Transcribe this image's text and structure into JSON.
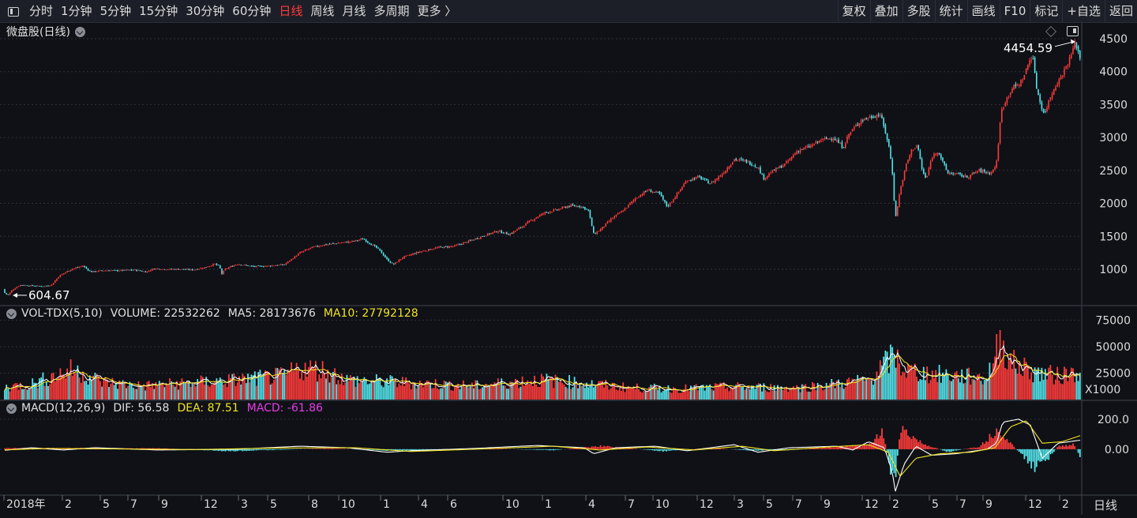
{
  "toolbar": {
    "left_items": [
      "分时",
      "1分钟",
      "5分钟",
      "15分钟",
      "30分钟",
      "60分钟",
      "日线",
      "周线",
      "月线",
      "多周期",
      "更多 〉"
    ],
    "active": "日线",
    "right_items": [
      "复权",
      "叠加",
      "多股",
      "统计",
      "画线",
      "F10",
      "标记",
      "+自选",
      "返回"
    ]
  },
  "main_panel": {
    "title": "微盘股(日线)",
    "high_label": "4454.59",
    "low_label": "604.67"
  },
  "vol_panel": {
    "name": "VOL-TDX(5,10)",
    "volume": "VOLUME: 22532262",
    "ma5": "MA5: 28173676",
    "ma10": "MA10: 27792128",
    "unit": "X1000"
  },
  "macd_panel": {
    "name": "MACD(12,26,9)",
    "dif": "DIF: 56.58",
    "dea": "DEA: 87.51",
    "macd": "MACD: -61.86"
  },
  "period_label": "日线",
  "colors": {
    "up": "#ff3b3b",
    "down": "#54e6ec",
    "ma5": "#ffffff",
    "ma10": "#f2e322",
    "macd": "#e83ce8",
    "background": "#0f1116"
  },
  "chart_data": [
    {
      "type": "candlestick",
      "title": "微盘股(日线)",
      "ylim": [
        580,
        4620
      ],
      "yticks": [
        1000,
        1500,
        2000,
        2500,
        3000,
        3500,
        4000,
        4500
      ],
      "x_ticks": [
        "2018年",
        "2",
        "5",
        "7",
        "9",
        "12",
        "3",
        "5",
        "8",
        "10",
        "1",
        "4",
        "6",
        "10",
        "1",
        "4",
        "7",
        "10",
        "12",
        "3",
        "5",
        "7",
        "9",
        "12",
        "2",
        "5",
        "7",
        "9",
        "12",
        "2"
      ],
      "close_path": [
        [
          0,
          700
        ],
        [
          5,
          650
        ],
        [
          10,
          605
        ],
        [
          15,
          680
        ],
        [
          25,
          760
        ],
        [
          40,
          750
        ],
        [
          55,
          740
        ],
        [
          65,
          760
        ],
        [
          75,
          900
        ],
        [
          90,
          1000
        ],
        [
          105,
          1050
        ],
        [
          115,
          960
        ],
        [
          130,
          980
        ],
        [
          150,
          980
        ],
        [
          170,
          990
        ],
        [
          185,
          960
        ],
        [
          195,
          1010
        ],
        [
          210,
          1000
        ],
        [
          230,
          1000
        ],
        [
          245,
          990
        ],
        [
          260,
          1030
        ],
        [
          272,
          1080
        ],
        [
          278,
          1040
        ],
        [
          281,
          930
        ],
        [
          285,
          1000
        ],
        [
          300,
          1080
        ],
        [
          320,
          1040
        ],
        [
          340,
          1050
        ],
        [
          360,
          1070
        ],
        [
          380,
          1250
        ],
        [
          395,
          1330
        ],
        [
          410,
          1370
        ],
        [
          430,
          1400
        ],
        [
          445,
          1420
        ],
        [
          460,
          1460
        ],
        [
          470,
          1380
        ],
        [
          480,
          1300
        ],
        [
          490,
          1150
        ],
        [
          498,
          1070
        ],
        [
          510,
          1180
        ],
        [
          530,
          1260
        ],
        [
          555,
          1330
        ],
        [
          575,
          1350
        ],
        [
          595,
          1430
        ],
        [
          615,
          1520
        ],
        [
          630,
          1580
        ],
        [
          645,
          1530
        ],
        [
          660,
          1640
        ],
        [
          675,
          1760
        ],
        [
          690,
          1860
        ],
        [
          705,
          1900
        ],
        [
          720,
          1960
        ],
        [
          735,
          1960
        ],
        [
          745,
          1900
        ],
        [
          752,
          1530
        ],
        [
          760,
          1600
        ],
        [
          775,
          1770
        ],
        [
          790,
          1900
        ],
        [
          805,
          2080
        ],
        [
          820,
          2200
        ],
        [
          835,
          2150
        ],
        [
          845,
          1950
        ],
        [
          855,
          2100
        ],
        [
          870,
          2350
        ],
        [
          885,
          2400
        ],
        [
          900,
          2300
        ],
        [
          915,
          2450
        ],
        [
          930,
          2670
        ],
        [
          945,
          2640
        ],
        [
          960,
          2550
        ],
        [
          967,
          2380
        ],
        [
          980,
          2500
        ],
        [
          995,
          2600
        ],
        [
          1010,
          2800
        ],
        [
          1025,
          2860
        ],
        [
          1040,
          2960
        ],
        [
          1055,
          3000
        ],
        [
          1068,
          2850
        ],
        [
          1075,
          3050
        ],
        [
          1090,
          3260
        ],
        [
          1105,
          3320
        ],
        [
          1115,
          3350
        ],
        [
          1122,
          3050
        ],
        [
          1126,
          2850
        ],
        [
          1130,
          2500
        ],
        [
          1134,
          1760
        ],
        [
          1140,
          2200
        ],
        [
          1148,
          2600
        ],
        [
          1155,
          2820
        ],
        [
          1162,
          2880
        ],
        [
          1168,
          2500
        ],
        [
          1173,
          2360
        ],
        [
          1180,
          2700
        ],
        [
          1188,
          2800
        ],
        [
          1195,
          2600
        ],
        [
          1200,
          2460
        ],
        [
          1210,
          2450
        ],
        [
          1225,
          2400
        ],
        [
          1240,
          2500
        ],
        [
          1255,
          2460
        ],
        [
          1262,
          2600
        ],
        [
          1268,
          3400
        ],
        [
          1275,
          3600
        ],
        [
          1282,
          3750
        ],
        [
          1290,
          3800
        ],
        [
          1296,
          3900
        ],
        [
          1303,
          4150
        ],
        [
          1308,
          4250
        ],
        [
          1312,
          3800
        ],
        [
          1318,
          3500
        ],
        [
          1323,
          3350
        ],
        [
          1328,
          3550
        ],
        [
          1335,
          3750
        ],
        [
          1345,
          3950
        ],
        [
          1355,
          4200
        ],
        [
          1362,
          4450
        ],
        [
          1368,
          4200
        ]
      ]
    },
    {
      "type": "bar",
      "title": "VOL-TDX(5,10)",
      "ylabel": "X1000",
      "ylim": [
        0,
        88000
      ],
      "yticks": [
        25000,
        50000,
        75000
      ],
      "volume_envelope": [
        [
          0,
          12000
        ],
        [
          40,
          16000
        ],
        [
          90,
          30000
        ],
        [
          105,
          27000
        ],
        [
          130,
          18000
        ],
        [
          180,
          14000
        ],
        [
          260,
          18000
        ],
        [
          300,
          20000
        ],
        [
          360,
          24000
        ],
        [
          380,
          32000
        ],
        [
          410,
          30000
        ],
        [
          440,
          20000
        ],
        [
          520,
          17000
        ],
        [
          600,
          14000
        ],
        [
          680,
          20000
        ],
        [
          720,
          18000
        ],
        [
          800,
          12000
        ],
        [
          860,
          11000
        ],
        [
          930,
          13000
        ],
        [
          1010,
          12000
        ],
        [
          1060,
          16000
        ],
        [
          1100,
          20000
        ],
        [
          1133,
          45000
        ],
        [
          1145,
          30000
        ],
        [
          1180,
          26000
        ],
        [
          1250,
          22000
        ],
        [
          1268,
          62000
        ],
        [
          1280,
          38000
        ],
        [
          1310,
          28000
        ],
        [
          1340,
          24000
        ],
        [
          1368,
          30000
        ]
      ],
      "series": [
        {
          "name": "MA5",
          "value": 28173676
        },
        {
          "name": "MA10",
          "value": 27792128
        }
      ]
    },
    {
      "type": "line",
      "title": "MACD(12,26,9)",
      "ylim": [
        -300,
        320
      ],
      "yticks": [
        200.0,
        0.0
      ],
      "dif_path": [
        [
          0,
          -10
        ],
        [
          40,
          10
        ],
        [
          80,
          -5
        ],
        [
          120,
          10
        ],
        [
          200,
          -5
        ],
        [
          300,
          0
        ],
        [
          380,
          20
        ],
        [
          440,
          10
        ],
        [
          490,
          -20
        ],
        [
          520,
          -10
        ],
        [
          600,
          5
        ],
        [
          680,
          25
        ],
        [
          740,
          10
        ],
        [
          752,
          -30
        ],
        [
          780,
          10
        ],
        [
          830,
          20
        ],
        [
          870,
          -10
        ],
        [
          930,
          30
        ],
        [
          960,
          -20
        ],
        [
          1000,
          10
        ],
        [
          1060,
          20
        ],
        [
          1080,
          -5
        ],
        [
          1100,
          50
        ],
        [
          1120,
          10
        ],
        [
          1130,
          -150
        ],
        [
          1134,
          -280
        ],
        [
          1145,
          -100
        ],
        [
          1160,
          20
        ],
        [
          1180,
          -40
        ],
        [
          1210,
          -30
        ],
        [
          1250,
          0
        ],
        [
          1262,
          40
        ],
        [
          1270,
          180
        ],
        [
          1290,
          200
        ],
        [
          1305,
          160
        ],
        [
          1320,
          -60
        ],
        [
          1340,
          40
        ],
        [
          1368,
          60
        ]
      ],
      "dea_path": [
        [
          0,
          -5
        ],
        [
          60,
          5
        ],
        [
          150,
          2
        ],
        [
          250,
          -2
        ],
        [
          350,
          8
        ],
        [
          450,
          10
        ],
        [
          520,
          -15
        ],
        [
          600,
          0
        ],
        [
          700,
          20
        ],
        [
          760,
          -5
        ],
        [
          820,
          15
        ],
        [
          880,
          -5
        ],
        [
          940,
          20
        ],
        [
          980,
          -10
        ],
        [
          1050,
          15
        ],
        [
          1100,
          30
        ],
        [
          1125,
          -20
        ],
        [
          1140,
          -180
        ],
        [
          1160,
          -60
        ],
        [
          1190,
          -30
        ],
        [
          1230,
          -20
        ],
        [
          1260,
          10
        ],
        [
          1280,
          150
        ],
        [
          1300,
          190
        ],
        [
          1320,
          40
        ],
        [
          1345,
          50
        ],
        [
          1368,
          90
        ]
      ],
      "histogram": [
        [
          20,
          8
        ],
        [
          100,
          10
        ],
        [
          210,
          6
        ],
        [
          290,
          -15
        ],
        [
          420,
          6
        ],
        [
          490,
          -10
        ],
        [
          520,
          -10
        ],
        [
          620,
          5
        ],
        [
          700,
          -8
        ],
        [
          760,
          25
        ],
        [
          840,
          -15
        ],
        [
          900,
          10
        ],
        [
          950,
          -10
        ],
        [
          1000,
          -6
        ],
        [
          1080,
          25
        ],
        [
          1100,
          30
        ],
        [
          1118,
          140
        ],
        [
          1128,
          -160
        ],
        [
          1134,
          -250
        ],
        [
          1140,
          180
        ],
        [
          1150,
          120
        ],
        [
          1170,
          40
        ],
        [
          1200,
          -20
        ],
        [
          1240,
          20
        ],
        [
          1265,
          160
        ],
        [
          1275,
          80
        ],
        [
          1290,
          -20
        ],
        [
          1310,
          -140
        ],
        [
          1325,
          -90
        ],
        [
          1340,
          20
        ],
        [
          1360,
          40
        ],
        [
          1368,
          -60
        ]
      ],
      "series": [
        {
          "name": "DIF",
          "value": 56.58
        },
        {
          "name": "DEA",
          "value": 87.51
        },
        {
          "name": "MACD",
          "value": -61.86
        }
      ]
    }
  ]
}
